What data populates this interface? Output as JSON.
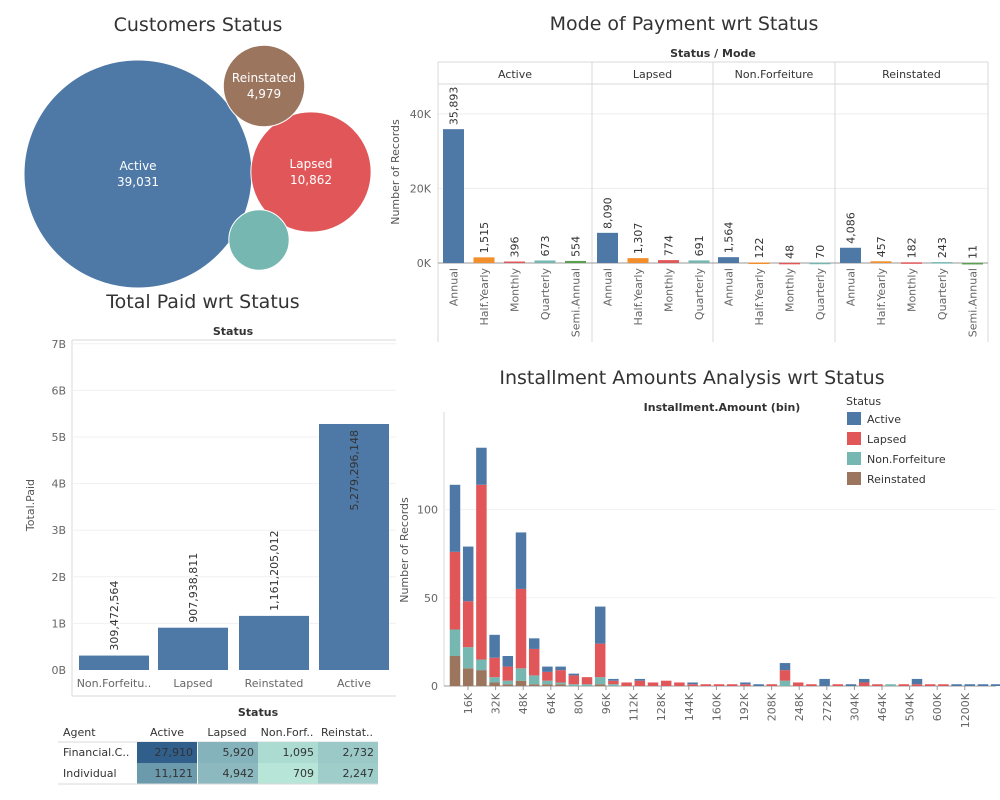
{
  "colors": {
    "active": "#4e79a7",
    "lapsed": "#e15759",
    "non_forfeiture": "#76b7b2",
    "reinstated": "#9c755f",
    "orange": "#f28e2b",
    "green": "#59a14f"
  },
  "chart_data": [
    {
      "type": "bubble",
      "title": "Customers Status",
      "items": [
        {
          "label": "Active",
          "value": 39031,
          "value_label": "39,031"
        },
        {
          "label": "Lapsed",
          "value": 10862,
          "value_label": "10,862"
        },
        {
          "label": "Reinstated",
          "value": 4979,
          "value_label": "4,979"
        },
        {
          "label": "",
          "value": 2739,
          "value_label": ""
        }
      ]
    },
    {
      "type": "bar",
      "title": "Mode of Payment wrt Status",
      "header": "Status / Mode",
      "ylabel": "Number of Records",
      "ylim": [
        0,
        48000
      ],
      "ticks": [
        "0K",
        "20K",
        "40K"
      ],
      "panels": [
        {
          "name": "Active",
          "categories": [
            "Annual",
            "Half.Yearly",
            "Monthly",
            "Quarterly",
            "Semi.Annual"
          ],
          "values": [
            35893,
            1515,
            396,
            673,
            554
          ],
          "labels": [
            "35,893",
            "1,515",
            "396",
            "673",
            "554"
          ]
        },
        {
          "name": "Lapsed",
          "categories": [
            "Annual",
            "Half.Yearly",
            "Monthly",
            "Quarterly"
          ],
          "values": [
            8090,
            1307,
            774,
            691
          ],
          "labels": [
            "8,090",
            "1,307",
            "774",
            "691"
          ]
        },
        {
          "name": "Non.Forfeiture",
          "categories": [
            "Annual",
            "Half.Yearly",
            "Monthly",
            "Quarterly"
          ],
          "values": [
            1564,
            122,
            48,
            70
          ],
          "labels": [
            "1,564",
            "122",
            "48",
            "70"
          ]
        },
        {
          "name": "Reinstated",
          "categories": [
            "Annual",
            "Half.Yearly",
            "Monthly",
            "Quarterly",
            "Semi.Annual"
          ],
          "values": [
            4086,
            457,
            182,
            243,
            11
          ],
          "labels": [
            "4,086",
            "457",
            "182",
            "243",
            "11"
          ]
        }
      ]
    },
    {
      "type": "bar",
      "title": "Total Paid wrt Status",
      "header": "Status",
      "xlabel": "Status",
      "ylabel": "Total.Paid",
      "ylim": [
        0,
        7000000000
      ],
      "ticks": [
        "0B",
        "1B",
        "2B",
        "3B",
        "4B",
        "5B",
        "6B",
        "7B"
      ],
      "categories": [
        "Non.Forfeitu..",
        "Lapsed",
        "Reinstated",
        "Active"
      ],
      "values": [
        309472564,
        907938811,
        1161205012,
        5279296148
      ],
      "labels": [
        "309,472,564",
        "907,938,811",
        "1,161,205,012",
        "5,279,296,148"
      ]
    },
    {
      "type": "table",
      "header_row": [
        "Agent",
        "Active",
        "Lapsed",
        "Non.Forf..",
        "Reinstat.."
      ],
      "rows": [
        {
          "agent": "Financial.C..",
          "values": [
            27910,
            5920,
            1095,
            2732
          ],
          "labels": [
            "27,910",
            "5,920",
            "1,095",
            "2,732"
          ]
        },
        {
          "agent": "Individual",
          "values": [
            11121,
            4942,
            709,
            2247
          ],
          "labels": [
            "11,121",
            "4,942",
            "709",
            "2,247"
          ]
        }
      ]
    },
    {
      "type": "bar",
      "stacked": true,
      "title": "Installment Amounts Analysis wrt Status",
      "xlabel": "Installment.Amount (bin)",
      "ylabel": "Number of Records",
      "ylim": [
        0,
        145
      ],
      "ticks": [
        "0",
        "50",
        "100"
      ],
      "xtick_labels": [
        "16K",
        "32K",
        "48K",
        "64K",
        "80K",
        "96K",
        "112K",
        "128K",
        "144K",
        "160K",
        "192K",
        "208K",
        "248K",
        "272K",
        "304K",
        "464K",
        "504K",
        "600K",
        "1200K"
      ],
      "legend": {
        "title": "Status",
        "items": [
          "Active",
          "Lapsed",
          "Non.Forfeiture",
          "Reinstated"
        ]
      },
      "stack_order": [
        "reinstated",
        "non_forfeiture",
        "lapsed",
        "active"
      ],
      "bins": [
        {
          "r": 17,
          "n": 15,
          "l": 44,
          "a": 38
        },
        {
          "r": 10,
          "n": 12,
          "l": 26,
          "a": 31
        },
        {
          "r": 9,
          "n": 6,
          "l": 99,
          "a": 21
        },
        {
          "r": 2,
          "n": 3,
          "l": 11,
          "a": 13
        },
        {
          "r": 1,
          "n": 2,
          "l": 8,
          "a": 6
        },
        {
          "r": 3,
          "n": 7,
          "l": 45,
          "a": 32
        },
        {
          "r": 1,
          "n": 5,
          "l": 15,
          "a": 6
        },
        {
          "r": 1,
          "n": 2,
          "l": 5,
          "a": 3
        },
        {
          "r": 1,
          "n": 1,
          "l": 7,
          "a": 2
        },
        {
          "r": 0,
          "n": 1,
          "l": 5,
          "a": 1
        },
        {
          "r": 0,
          "n": 1,
          "l": 4,
          "a": 0
        },
        {
          "r": 1,
          "n": 4,
          "l": 19,
          "a": 21
        },
        {
          "r": 0,
          "n": 1,
          "l": 2,
          "a": 1
        },
        {
          "r": 0,
          "n": 0,
          "l": 2,
          "a": 0
        },
        {
          "r": 0,
          "n": 0,
          "l": 3,
          "a": 1
        },
        {
          "r": 0,
          "n": 0,
          "l": 2,
          "a": 0
        },
        {
          "r": 0,
          "n": 0,
          "l": 3,
          "a": 0
        },
        {
          "r": 0,
          "n": 0,
          "l": 2,
          "a": 0
        },
        {
          "r": 0,
          "n": 0,
          "l": 1,
          "a": 1
        },
        {
          "r": 0,
          "n": 0,
          "l": 1,
          "a": 0
        },
        {
          "r": 0,
          "n": 0,
          "l": 1,
          "a": 0
        },
        {
          "r": 0,
          "n": 0,
          "l": 1,
          "a": 0
        },
        {
          "r": 0,
          "n": 0,
          "l": 1,
          "a": 1
        },
        {
          "r": 0,
          "n": 0,
          "l": 0,
          "a": 1
        },
        {
          "r": 0,
          "n": 0,
          "l": 1,
          "a": 0
        },
        {
          "r": 0,
          "n": 3,
          "l": 6,
          "a": 4
        },
        {
          "r": 0,
          "n": 0,
          "l": 2,
          "a": 0
        },
        {
          "r": 0,
          "n": 0,
          "l": 1,
          "a": 0
        },
        {
          "r": 0,
          "n": 0,
          "l": 0,
          "a": 4
        },
        {
          "r": 0,
          "n": 0,
          "l": 1,
          "a": 0
        },
        {
          "r": 0,
          "n": 0,
          "l": 0,
          "a": 1
        },
        {
          "r": 0,
          "n": 0,
          "l": 2,
          "a": 2
        },
        {
          "r": 0,
          "n": 0,
          "l": 1,
          "a": 0
        },
        {
          "r": 0,
          "n": 1,
          "l": 0,
          "a": 0
        },
        {
          "r": 0,
          "n": 0,
          "l": 1,
          "a": 0
        },
        {
          "r": 0,
          "n": 0,
          "l": 1,
          "a": 3
        },
        {
          "r": 0,
          "n": 0,
          "l": 1,
          "a": 0
        },
        {
          "r": 0,
          "n": 0,
          "l": 1,
          "a": 0
        },
        {
          "r": 0,
          "n": 0,
          "l": 0,
          "a": 1
        },
        {
          "r": 0,
          "n": 0,
          "l": 0,
          "a": 1
        },
        {
          "r": 0,
          "n": 0,
          "l": 0,
          "a": 1
        },
        {
          "r": 0,
          "n": 0,
          "l": 0,
          "a": 1
        }
      ]
    }
  ]
}
